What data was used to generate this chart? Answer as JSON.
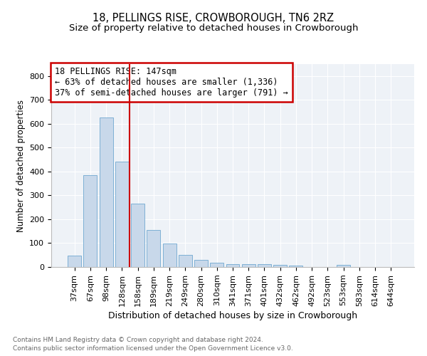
{
  "title1": "18, PELLINGS RISE, CROWBOROUGH, TN6 2RZ",
  "title2": "Size of property relative to detached houses in Crowborough",
  "xlabel": "Distribution of detached houses by size in Crowborough",
  "ylabel": "Number of detached properties",
  "footnote1": "Contains HM Land Registry data © Crown copyright and database right 2024.",
  "footnote2": "Contains public sector information licensed under the Open Government Licence v3.0.",
  "categories": [
    "37sqm",
    "67sqm",
    "98sqm",
    "128sqm",
    "158sqm",
    "189sqm",
    "219sqm",
    "249sqm",
    "280sqm",
    "310sqm",
    "341sqm",
    "371sqm",
    "401sqm",
    "432sqm",
    "462sqm",
    "492sqm",
    "523sqm",
    "553sqm",
    "583sqm",
    "614sqm",
    "644sqm"
  ],
  "values": [
    48,
    385,
    625,
    440,
    265,
    155,
    97,
    51,
    30,
    17,
    12,
    12,
    11,
    10,
    7,
    0,
    0,
    8,
    0,
    0,
    0
  ],
  "bar_color": "#c8d8ea",
  "bar_edge_color": "#6fa8d0",
  "vline_x_index": 3.5,
  "vline_color": "#cc0000",
  "annotation_line1": "18 PELLINGS RISE: 147sqm",
  "annotation_line2": "← 63% of detached houses are smaller (1,336)",
  "annotation_line3": "37% of semi-detached houses are larger (791) →",
  "box_edge_color": "#cc0000",
  "ylim": [
    0,
    850
  ],
  "yticks": [
    0,
    100,
    200,
    300,
    400,
    500,
    600,
    700,
    800
  ],
  "plot_bg_color": "#eef2f7",
  "grid_color": "#ffffff",
  "title1_fontsize": 10.5,
  "title2_fontsize": 9.5,
  "xlabel_fontsize": 9,
  "ylabel_fontsize": 8.5,
  "tick_fontsize": 8,
  "footnote_fontsize": 6.5,
  "annotation_fontsize": 8.5
}
